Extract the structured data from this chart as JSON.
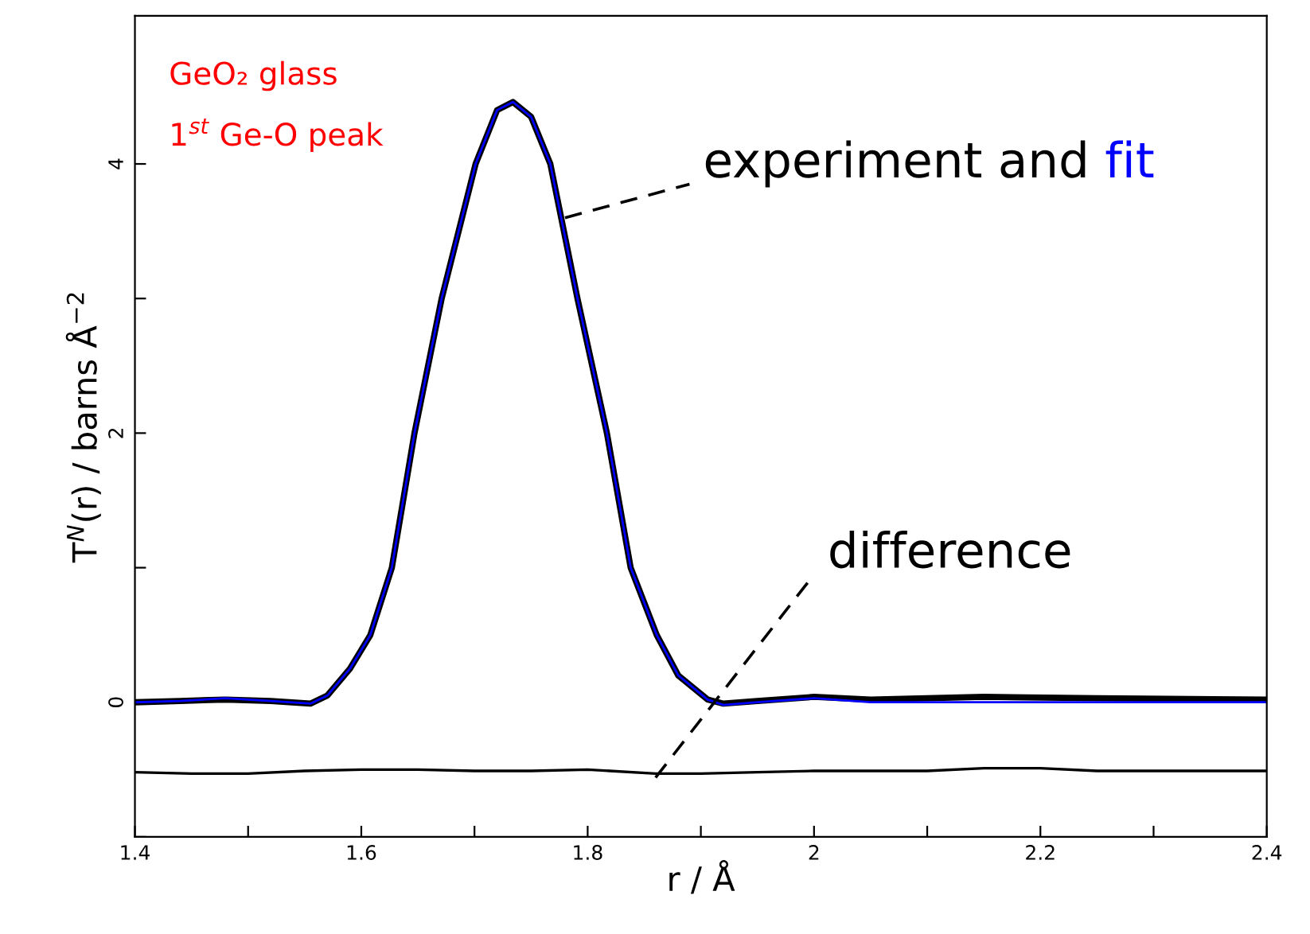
{
  "chart_data": {
    "type": "line",
    "xlabel": "r / Å",
    "ylabel": "T$^{N}$(r) / barns Å$^{−2}$",
    "annotations": [
      "GeO₂ glass",
      "1$^{st}$ Ge-O peak",
      {
        "text": "experiment and",
        "x": 1.78,
        "y": 3.6
      },
      {
        "text": "difference",
        "x": 1.86,
        "y": -0.56
      }
    ],
    "series": [
      {
        "color": "#000000",
        "x": [
          1.4,
          1.44,
          1.48,
          1.52,
          1.555,
          1.57,
          1.59,
          1.608,
          1.627,
          1.647,
          1.671,
          1.701,
          1.72,
          1.734,
          1.75,
          1.767,
          1.791,
          1.817,
          1.838,
          1.861,
          1.88,
          1.906,
          1.92,
          1.95,
          2.0,
          2.05,
          2.15,
          2.25,
          2.4
        ],
        "values": [
          0.0,
          0.01,
          0.02,
          0.01,
          -0.01,
          0.05,
          0.25,
          0.5,
          1.0,
          2.0,
          3.0,
          4.0,
          4.4,
          4.46,
          4.35,
          4.0,
          3.0,
          2.0,
          1.0,
          0.5,
          0.2,
          0.02,
          -0.01,
          0.01,
          0.04,
          0.02,
          0.04,
          0.03,
          0.02
        ]
      },
      {
        "name": "fit",
        "color": "#0000ff",
        "x": [
          1.4,
          1.44,
          1.48,
          1.52,
          1.555,
          1.57,
          1.59,
          1.608,
          1.627,
          1.647,
          1.671,
          1.701,
          1.72,
          1.734,
          1.75,
          1.767,
          1.791,
          1.817,
          1.838,
          1.861,
          1.88,
          1.906,
          1.92,
          1.95,
          2.0,
          2.05,
          2.15,
          2.25,
          2.4
        ],
        "values": [
          0.0,
          0.01,
          0.03,
          0.01,
          -0.01,
          0.05,
          0.25,
          0.5,
          1.0,
          2.0,
          3.0,
          4.0,
          4.4,
          4.46,
          4.35,
          4.0,
          3.0,
          2.0,
          1.0,
          0.5,
          0.2,
          0.02,
          -0.02,
          0.0,
          0.03,
          0.0,
          0.0,
          0.0,
          0.0
        ]
      },
      {
        "color": "#000000",
        "x": [
          1.4,
          1.45,
          1.5,
          1.55,
          1.6,
          1.65,
          1.7,
          1.75,
          1.8,
          1.86,
          1.9,
          1.95,
          2.0,
          2.1,
          2.15,
          2.2,
          2.25,
          2.3,
          2.4
        ],
        "values": [
          -0.52,
          -0.53,
          -0.53,
          -0.51,
          -0.5,
          -0.5,
          -0.51,
          -0.51,
          -0.5,
          -0.53,
          -0.53,
          -0.52,
          -0.51,
          -0.51,
          -0.49,
          -0.49,
          -0.51,
          -0.51,
          -0.51
        ]
      }
    ],
    "xlim": [
      1.4,
      2.4
    ],
    "xticks": [
      1.4,
      {
        "value": 1.5,
        "label": null
      },
      1.6,
      {
        "value": 1.7,
        "label": null
      },
      1.8,
      {
        "value": 1.9,
        "label": null
      },
      2,
      {
        "value": 2.1,
        "label": null
      },
      2.2,
      {
        "value": 2.3,
        "label": null
      },
      2.4
    ],
    "ylim": [
      -1,
      5.1
    ],
    "yticks": [
      {
        "value": -1,
        "label": null
      },
      0,
      {
        "value": 1,
        "label": null
      },
      2,
      {
        "value": 3,
        "label": null
      },
      4
    ],
    "grid": false,
    "legend": false,
    "marker": "none",
    "line_style": "solid"
  }
}
